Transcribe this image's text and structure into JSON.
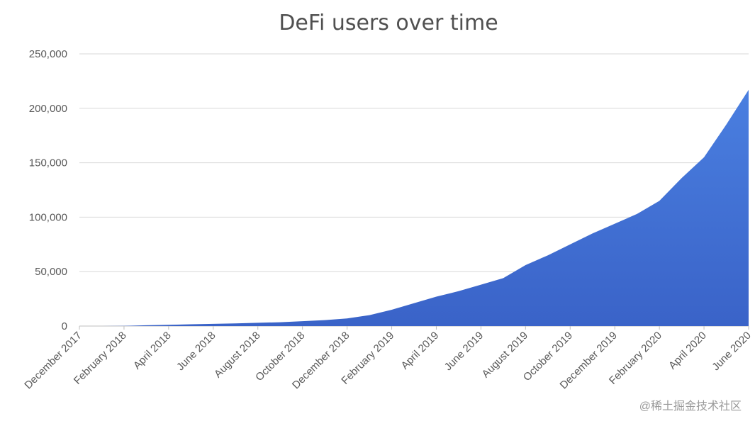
{
  "chart_data": {
    "type": "area",
    "title": "DeFi users over time",
    "xlabel": "",
    "ylabel": "",
    "y_ticks": [
      "0",
      "50,000",
      "100,000",
      "150,000",
      "200,000",
      "250,000"
    ],
    "ylim": [
      0,
      250000
    ],
    "x_ticks": [
      "December 2017",
      "February 2018",
      "April 2018",
      "June 2018",
      "August 2018",
      "October 2018",
      "December 2018",
      "February 2019",
      "April 2019",
      "June 2019",
      "August 2019",
      "October 2019",
      "December 2019",
      "February 2020",
      "April 2020",
      "June 2020"
    ],
    "x_range": [
      "2017-12",
      "2020-06"
    ],
    "grid": true,
    "legend": "none",
    "fill_color_top": "#4a7fe0",
    "fill_color_bottom": "#3a63c8",
    "grid_color": "#d9d9d9",
    "series": [
      {
        "x": [
          "2017-12",
          "2018-01",
          "2018-02",
          "2018-03",
          "2018-04",
          "2018-05",
          "2018-06",
          "2018-07",
          "2018-08",
          "2018-09",
          "2018-10",
          "2018-11",
          "2018-12",
          "2019-01",
          "2019-02",
          "2019-03",
          "2019-04",
          "2019-05",
          "2019-06",
          "2019-07",
          "2019-08",
          "2019-09",
          "2019-10",
          "2019-11",
          "2019-12",
          "2020-01",
          "2020-02",
          "2020-03",
          "2020-04",
          "2020-05",
          "2020-06"
        ],
        "values": [
          0,
          0,
          200,
          700,
          1200,
          1600,
          2000,
          2500,
          3000,
          3500,
          4500,
          5500,
          7000,
          10000,
          15000,
          21000,
          27000,
          32000,
          38000,
          44000,
          56000,
          65000,
          75000,
          85000,
          94000,
          103000,
          115000,
          136000,
          155000,
          185000,
          217000
        ]
      }
    ]
  },
  "watermark": "@稀土掘金技术社区"
}
